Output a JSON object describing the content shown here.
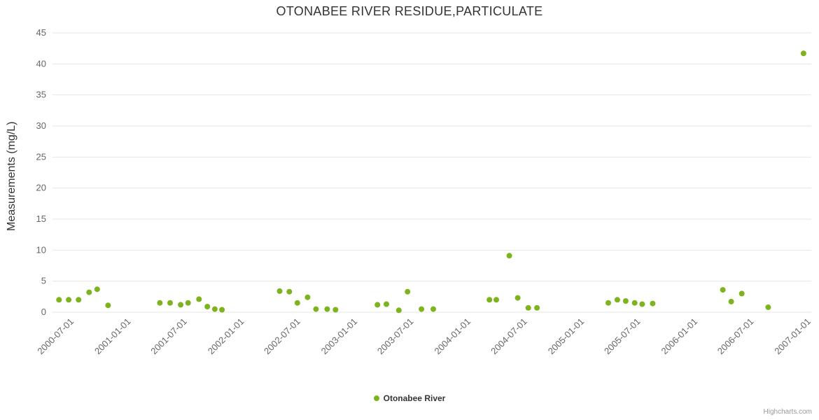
{
  "credits": "Highcharts.com",
  "chart_data": {
    "type": "scatter",
    "title": "OTONABEE RIVER RESIDUE,PARTICULATE",
    "xlabel": "",
    "ylabel": "Measurements (mg/L)",
    "ylim": [
      0,
      45
    ],
    "ytick_step": 5,
    "grid": true,
    "legend_position": "bottom-center",
    "point_color": "#7db31c",
    "gridline_color": "#e6e6e6",
    "tick_label_color": "#666666",
    "xaxis": {
      "min": "2000-04-29",
      "max": "2007-01-08",
      "ticks": [
        "2000-07-01",
        "2001-01-01",
        "2001-07-01",
        "2002-01-01",
        "2002-07-01",
        "2003-01-01",
        "2003-07-01",
        "2004-01-01",
        "2004-07-01",
        "2005-01-01",
        "2005-07-01",
        "2006-01-01",
        "2006-07-01",
        "2007-01-01"
      ]
    },
    "series": [
      {
        "name": "Otonabee River",
        "points": [
          [
            "2000-05-20",
            2.0
          ],
          [
            "2000-06-20",
            2.0
          ],
          [
            "2000-07-22",
            2.0
          ],
          [
            "2000-08-25",
            3.2
          ],
          [
            "2000-09-20",
            3.7
          ],
          [
            "2000-10-25",
            1.1
          ],
          [
            "2001-04-10",
            1.5
          ],
          [
            "2001-05-13",
            1.5
          ],
          [
            "2001-06-16",
            1.2
          ],
          [
            "2001-07-10",
            1.5
          ],
          [
            "2001-08-14",
            2.1
          ],
          [
            "2001-09-10",
            0.9
          ],
          [
            "2001-10-04",
            0.5
          ],
          [
            "2001-10-27",
            0.4
          ],
          [
            "2002-05-01",
            3.4
          ],
          [
            "2002-06-01",
            3.3
          ],
          [
            "2002-06-27",
            1.5
          ],
          [
            "2002-07-30",
            2.4
          ],
          [
            "2002-08-26",
            0.5
          ],
          [
            "2002-10-01",
            0.5
          ],
          [
            "2002-10-28",
            0.4
          ],
          [
            "2003-03-12",
            1.2
          ],
          [
            "2003-04-10",
            1.3
          ],
          [
            "2003-05-20",
            0.3
          ],
          [
            "2003-06-17",
            3.3
          ],
          [
            "2003-08-01",
            0.5
          ],
          [
            "2003-09-08",
            0.5
          ],
          [
            "2004-03-07",
            2.0
          ],
          [
            "2004-03-29",
            2.0
          ],
          [
            "2004-05-10",
            9.1
          ],
          [
            "2004-06-06",
            2.3
          ],
          [
            "2004-07-10",
            0.7
          ],
          [
            "2004-08-07",
            0.7
          ],
          [
            "2005-03-25",
            1.5
          ],
          [
            "2005-04-23",
            2.0
          ],
          [
            "2005-05-20",
            1.8
          ],
          [
            "2005-06-18",
            1.5
          ],
          [
            "2005-07-12",
            1.3
          ],
          [
            "2005-08-15",
            1.4
          ],
          [
            "2006-03-29",
            3.6
          ],
          [
            "2006-04-25",
            1.7
          ],
          [
            "2006-05-29",
            3.0
          ],
          [
            "2006-08-22",
            0.8
          ],
          [
            "2006-12-14",
            41.7
          ]
        ]
      }
    ]
  }
}
